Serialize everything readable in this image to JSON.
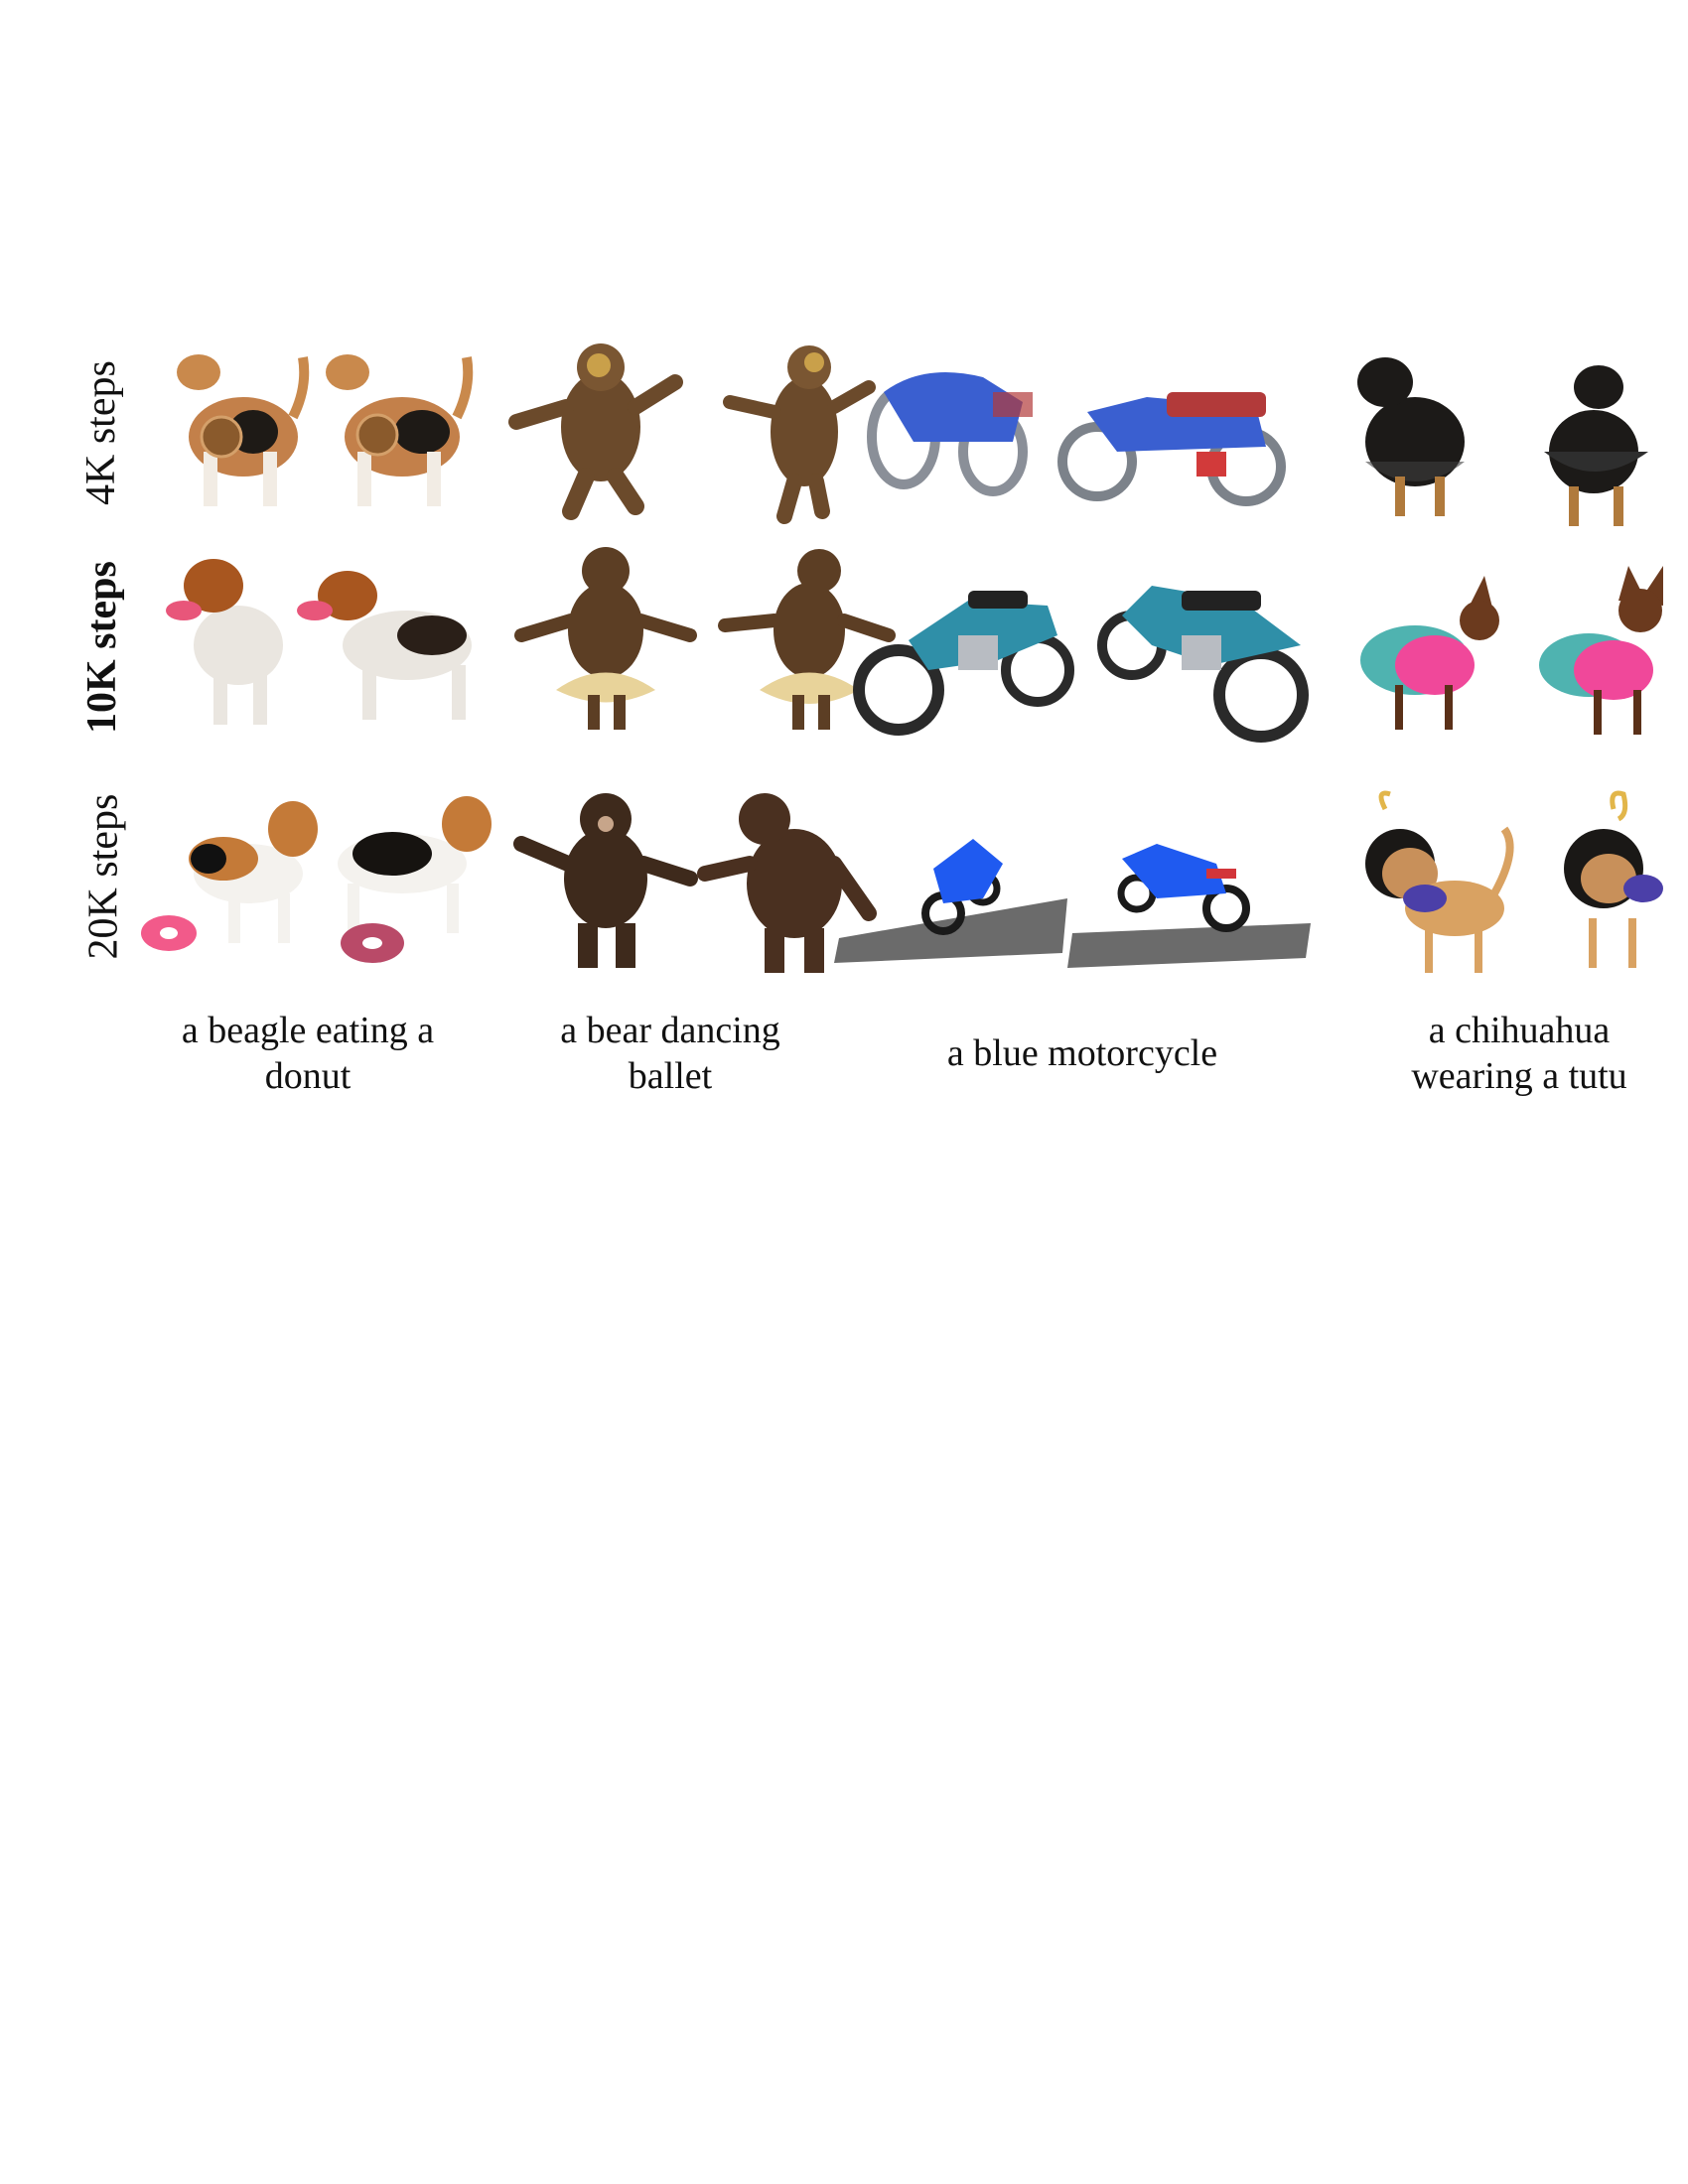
{
  "figure": {
    "rows": [
      {
        "label": "4K steps",
        "bold": false
      },
      {
        "label": "10K steps",
        "bold": true
      },
      {
        "label": "20K steps",
        "bold": false
      }
    ],
    "prompts": [
      {
        "line1": "a beagle eating a",
        "line2": "donut"
      },
      {
        "line1": "a bear dancing",
        "line2": "ballet"
      },
      {
        "line1": "a blue motorcycle",
        "line2": ""
      },
      {
        "line1": "a chihuahua",
        "line2": "wearing a tutu"
      }
    ]
  }
}
